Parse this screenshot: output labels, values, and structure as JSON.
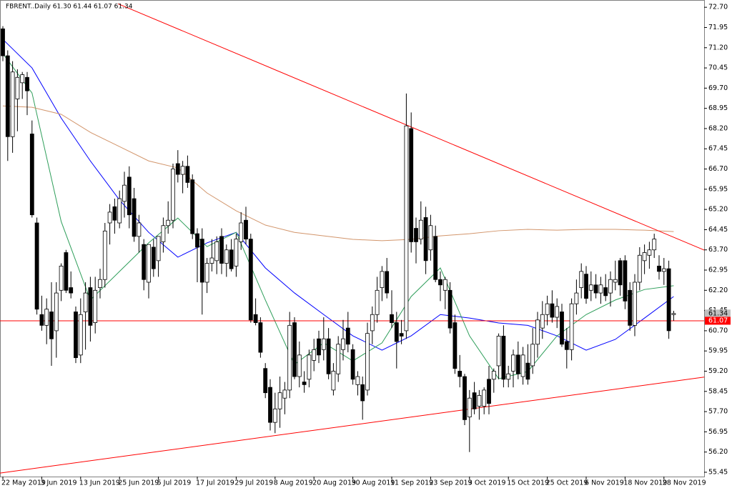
{
  "chart_data": {
    "type": "candlestick",
    "title": "FBRENT..Daily  61.30 61.44 61.07 61.34",
    "categories": [
      "22 May 2019",
      null,
      null,
      null,
      null,
      null,
      null,
      null,
      "3 Jun 2019",
      null,
      null,
      null,
      null,
      null,
      null,
      null,
      "13 Jun 2019",
      null,
      null,
      null,
      null,
      null,
      null,
      null,
      "25 Jun 2019",
      null,
      null,
      null,
      null,
      null,
      null,
      null,
      "5 Jul 2019",
      null,
      null,
      null,
      null,
      null,
      null,
      null,
      "17 Jul 2019",
      null,
      null,
      null,
      null,
      null,
      null,
      null,
      "29 Jul 2019",
      null,
      null,
      null,
      null,
      null,
      null,
      null,
      "8 Aug 2019",
      null,
      null,
      null,
      null,
      null,
      null,
      null,
      "20 Aug 2019",
      null,
      null,
      null,
      null,
      null,
      null,
      null,
      "30 Aug 2019",
      null,
      null,
      null,
      null,
      null,
      null,
      null,
      "11 Sep 2019",
      null,
      null,
      null,
      null,
      null,
      null,
      null,
      "23 Sep 2019",
      null,
      null,
      null,
      null,
      null,
      null,
      null,
      "3 Oct 2019",
      null,
      null,
      null,
      null,
      null,
      null,
      null,
      "15 Oct 2019",
      null,
      null,
      null,
      null,
      null,
      null,
      null,
      "25 Oct 2019",
      null,
      null,
      null,
      null,
      null,
      null,
      null,
      "6 Nov 2019",
      null,
      null,
      null,
      null,
      null,
      null,
      null,
      "18 Nov 2019",
      null,
      null,
      null,
      null,
      null,
      null,
      null,
      "28 Nov 2019",
      null,
      null
    ],
    "open": [
      71.9,
      70.9,
      67.9,
      69.3,
      69.9,
      70.1,
      68.0,
      64.7,
      61.3,
      60.9,
      61.4,
      60.7,
      62.2,
      63.6,
      62.3,
      61.4,
      59.8,
      61.4,
      62.3,
      61.0,
      62.3,
      62.6,
      64.7,
      65.3,
      64.7,
      65.5,
      66.4,
      65.6,
      64.2,
      63.9,
      62.5,
      63.8,
      63.3,
      64.0,
      64.6,
      64.8,
      66.9,
      66.5,
      66.8,
      66.3,
      64.3,
      64.1,
      62.5,
      63.2,
      63.3,
      64.2,
      63.2,
      63.7,
      63.1,
      64.0,
      64.8,
      64.1,
      61.3,
      61.0,
      59.3,
      58.6,
      57.3,
      57.8,
      58.2,
      58.5,
      61.0,
      59.0,
      58.8,
      58.9,
      59.6,
      60.4,
      60.0,
      60.4,
      58.5,
      59.1,
      60.0,
      60.8,
      60.0,
      58.7,
      58.7,
      58.5,
      60.7,
      61.3,
      62.3,
      62.9,
      61.3,
      61.0,
      60.6,
      60.7,
      68.2,
      64.5,
      64.1,
      64.9,
      63.7,
      64.2,
      62.6,
      62.2,
      62.2,
      61.0,
      59.2,
      59.0,
      57.5,
      58.4,
      57.9,
      57.9,
      58.9,
      58.9,
      59.4,
      60.5,
      58.9,
      59.2,
      59.8,
      59.0,
      59.5,
      59.4,
      60.2,
      60.8,
      61.3,
      61.7,
      61.2,
      61.4,
      60.3,
      60.0,
      61.7,
      62.3,
      62.8,
      62.2,
      62.4,
      62.1,
      62.3,
      62.1,
      62.5,
      63.3,
      63.3,
      62.2,
      60.9,
      62.5,
      63.3,
      63.5,
      63.7,
      63.1,
      62.9,
      63.0,
      61.3
    ],
    "high": [
      72.0,
      71.1,
      70.7,
      70.4,
      70.3,
      70.3,
      68.5,
      64.9,
      62.0,
      61.9,
      62.5,
      62.5,
      63.2,
      63.7,
      62.9,
      61.6,
      61.9,
      62.5,
      62.7,
      62.7,
      63.0,
      64.7,
      65.4,
      65.6,
      65.9,
      66.6,
      66.8,
      66.0,
      65.0,
      64.1,
      63.9,
      64.1,
      64.2,
      64.9,
      65.5,
      66.9,
      67.4,
      67.0,
      67.2,
      66.5,
      64.5,
      64.5,
      63.4,
      64.1,
      64.2,
      64.5,
      63.9,
      64.1,
      64.3,
      65.1,
      65.3,
      64.3,
      61.9,
      61.2,
      59.5,
      58.9,
      58.4,
      59.0,
      58.8,
      61.4,
      61.2,
      60.3,
      59.2,
      60.0,
      60.4,
      60.7,
      61.2,
      60.8,
      59.5,
      60.5,
      61.1,
      61.4,
      60.2,
      59.2,
      59.0,
      61.0,
      61.6,
      62.7,
      63.1,
      63.4,
      62.2,
      61.4,
      61.1,
      69.5,
      68.8,
      64.9,
      65.5,
      65.3,
      65.0,
      64.6,
      62.9,
      62.7,
      62.5,
      61.3,
      59.8,
      59.1,
      58.5,
      58.8,
      58.5,
      58.6,
      59.4,
      59.3,
      60.6,
      60.9,
      59.4,
      60.0,
      60.3,
      60.1,
      60.2,
      60.8,
      61.4,
      61.8,
      62.0,
      62.2,
      61.9,
      61.7,
      60.8,
      61.9,
      62.6,
      63.2,
      63.1,
      62.9,
      62.8,
      62.7,
      62.8,
      62.9,
      63.3,
      63.4,
      63.5,
      62.5,
      62.8,
      63.8,
      63.9,
      64.0,
      64.3,
      63.5,
      63.4,
      63.3,
      61.44
    ],
    "low": [
      70.7,
      67.0,
      67.3,
      68.1,
      69.3,
      68.7,
      64.9,
      61.3,
      60.7,
      60.2,
      59.4,
      59.7,
      61.8,
      62.1,
      61.9,
      59.5,
      59.5,
      60.0,
      60.3,
      60.6,
      61.9,
      62.3,
      63.9,
      64.3,
      64.5,
      64.9,
      64.5,
      64.0,
      63.6,
      62.2,
      61.9,
      62.7,
      62.7,
      63.6,
      64.3,
      64.5,
      66.2,
      65.8,
      66.0,
      64.1,
      62.5,
      61.3,
      62.1,
      62.9,
      62.8,
      62.8,
      62.7,
      62.9,
      62.7,
      63.7,
      63.9,
      61.0,
      60.9,
      59.7,
      58.2,
      57.0,
      56.9,
      57.1,
      57.6,
      58.2,
      58.9,
      58.6,
      58.4,
      58.6,
      59.2,
      59.5,
      59.6,
      58.9,
      58.3,
      58.8,
      59.6,
      59.9,
      58.7,
      58.3,
      57.4,
      58.3,
      60.2,
      61.0,
      61.8,
      61.9,
      60.8,
      59.3,
      60.2,
      60.4,
      63.6,
      63.2,
      63.9,
      62.8,
      63.3,
      62.5,
      61.8,
      61.5,
      60.6,
      59.1,
      58.6,
      57.2,
      56.2,
      57.6,
      57.4,
      57.6,
      57.6,
      58.4,
      58.9,
      58.6,
      58.6,
      58.6,
      58.9,
      58.7,
      58.7,
      59.1,
      59.7,
      60.4,
      60.9,
      61.0,
      60.8,
      60.1,
      59.3,
      59.6,
      61.3,
      61.9,
      61.7,
      61.8,
      61.9,
      61.7,
      61.8,
      61.6,
      62.2,
      62.0,
      61.5,
      60.7,
      60.5,
      62.2,
      62.8,
      63.0,
      63.4,
      62.6,
      62.4,
      60.4,
      61.07
    ],
    "close": [
      70.9,
      67.9,
      70.3,
      70.1,
      70.2,
      69.6,
      65.0,
      61.5,
      60.9,
      61.5,
      60.4,
      62.1,
      63.1,
      62.2,
      62.1,
      59.7,
      61.3,
      62.1,
      60.9,
      62.2,
      62.6,
      64.4,
      65.1,
      64.8,
      65.6,
      66.1,
      65.0,
      64.2,
      64.7,
      62.6,
      63.9,
      63.0,
      64.2,
      64.6,
      64.8,
      66.7,
      66.5,
      66.8,
      66.2,
      64.3,
      63.8,
      62.5,
      63.2,
      63.4,
      64.0,
      63.2,
      63.7,
      63.0,
      64.1,
      64.7,
      64.1,
      61.1,
      61.0,
      59.9,
      58.4,
      57.3,
      57.8,
      58.4,
      58.5,
      60.9,
      59.0,
      59.8,
      58.7,
      59.8,
      60.0,
      59.8,
      60.4,
      59.1,
      59.2,
      60.2,
      60.4,
      60.2,
      58.9,
      59.0,
      58.1,
      60.6,
      61.3,
      62.2,
      62.9,
      62.1,
      61.0,
      60.3,
      60.5,
      68.3,
      64.0,
      64.0,
      64.8,
      63.3,
      64.6,
      62.6,
      62.4,
      62.6,
      60.8,
      59.3,
      59.0,
      57.4,
      58.2,
      57.8,
      58.3,
      58.5,
      58.0,
      59.2,
      60.5,
      58.9,
      59.1,
      59.8,
      59.1,
      59.8,
      58.9,
      60.2,
      61.1,
      61.3,
      61.7,
      61.2,
      61.6,
      60.2,
      60.0,
      61.7,
      62.1,
      62.9,
      61.9,
      62.4,
      62.1,
      62.4,
      62.0,
      62.6,
      62.6,
      62.4,
      61.8,
      60.9,
      62.5,
      63.5,
      63.6,
      63.7,
      64.1,
      62.9,
      63.0,
      60.7,
      61.34
    ],
    "indicators": [
      {
        "color": "#0000ff",
        "x": [
          0,
          6,
          12,
          18,
          24,
          30,
          36,
          42,
          48,
          54,
          60,
          66,
          72,
          78,
          84,
          90,
          96,
          102,
          108,
          114,
          120,
          126,
          132,
          138
        ],
        "values": [
          71.51,
          70.45,
          68.59,
          67.0,
          65.55,
          64.35,
          63.43,
          63.96,
          64.35,
          63.03,
          62.1,
          61.3,
          60.51,
          59.98,
          60.51,
          61.3,
          61.17,
          60.99,
          60.9,
          60.51,
          59.98,
          60.38,
          61.17,
          61.97
        ]
      },
      {
        "color": "#2e9e5a",
        "x": [
          0,
          6,
          12,
          18,
          24,
          30,
          36,
          42,
          48,
          54,
          60,
          66,
          72,
          78,
          84,
          90,
          96,
          102,
          108,
          114,
          120,
          126,
          132,
          138
        ],
        "values": [
          70.98,
          69.52,
          64.75,
          61.84,
          62.9,
          63.96,
          64.88,
          63.82,
          64.35,
          61.84,
          59.45,
          60.25,
          59.58,
          60.25,
          61.97,
          63.03,
          60.51,
          58.92,
          59.19,
          60.51,
          61.3,
          61.84,
          62.23,
          62.37
        ]
      },
      {
        "color": "#d2956b",
        "x": [
          0,
          6,
          12,
          18,
          24,
          30,
          36,
          42,
          48,
          54,
          60,
          66,
          72,
          78,
          84,
          90,
          96,
          102,
          108,
          114,
          120,
          126,
          132,
          138
        ],
        "values": [
          69.04,
          68.99,
          68.73,
          68.06,
          67.53,
          67.0,
          66.74,
          65.81,
          65.15,
          64.62,
          64.35,
          64.22,
          64.09,
          64.04,
          64.09,
          64.22,
          64.3,
          64.41,
          64.46,
          64.43,
          64.46,
          64.46,
          64.43,
          64.38
        ]
      }
    ],
    "trendlines": [
      {
        "color": "#ff0000",
        "x": [
          -0.59,
          144.3
        ],
        "values": [
          55.42,
          58.98
        ]
      },
      {
        "color": "#ff0000",
        "x": [
          23.7,
          144.3
        ],
        "values": [
          72.83,
          63.69
        ]
      }
    ],
    "price_tags": [
      {
        "value": 61.34,
        "label": "61.34",
        "color": "#c0c0c0"
      },
      {
        "value": 61.07,
        "label": "61.07",
        "color": "#ff0000"
      }
    ],
    "ylim": [
      55.29,
      72.97
    ],
    "yticks": [
      {
        "value": 72.7,
        "label": "72.70"
      },
      {
        "value": 71.95,
        "label": "71.95"
      },
      {
        "value": 71.2,
        "label": "71.20"
      },
      {
        "value": 70.45,
        "label": "70.45"
      },
      {
        "value": 69.7,
        "label": "69.70"
      },
      {
        "value": 68.95,
        "label": "68.95"
      },
      {
        "value": 68.2,
        "label": "68.20"
      },
      {
        "value": 67.45,
        "label": "67.45"
      },
      {
        "value": 66.7,
        "label": "66.70"
      },
      {
        "value": 65.95,
        "label": "65.95"
      },
      {
        "value": 65.2,
        "label": "65.20"
      },
      {
        "value": 64.45,
        "label": "64.45"
      },
      {
        "value": 63.7,
        "label": "63.70"
      },
      {
        "value": 62.95,
        "label": "62.95"
      },
      {
        "value": 62.2,
        "label": "62.20"
      },
      {
        "value": 61.45,
        "label": "61.45"
      },
      {
        "value": 60.7,
        "label": "60.70"
      },
      {
        "value": 59.95,
        "label": "59.95"
      },
      {
        "value": 59.2,
        "label": "59.20"
      },
      {
        "value": 58.45,
        "label": "58.45"
      },
      {
        "value": 57.7,
        "label": "57.70"
      },
      {
        "value": 56.95,
        "label": "56.95"
      },
      {
        "value": 56.2,
        "label": "56.20"
      },
      {
        "value": 55.45,
        "label": "55.45"
      }
    ],
    "grid": false
  }
}
